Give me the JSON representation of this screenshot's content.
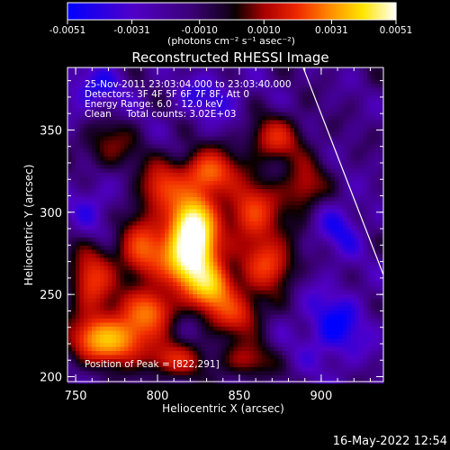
{
  "chart_data": {
    "type": "heatmap",
    "title": "Reconstructed RHESSI Image",
    "xlabel": "Heliocentric X (arcsec)",
    "ylabel": "Heliocentric Y (arcsec)",
    "xlim": [
      745,
      938
    ],
    "ylim": [
      197,
      388
    ],
    "x_ticks": [
      750,
      800,
      850,
      900
    ],
    "x_tick_labels": [
      "750",
      "800",
      "850",
      "900"
    ],
    "y_ticks": [
      200,
      250,
      300,
      350
    ],
    "y_tick_labels": [
      "200",
      "250",
      "300",
      "350"
    ],
    "colorbar": {
      "min": -0.0051,
      "max": 0.0051,
      "ticks": [
        -0.0051,
        -0.0031,
        -0.001,
        0.001,
        0.0031,
        0.0051
      ],
      "tick_labels": [
        "-0.0051",
        "-0.0031",
        "-0.0010",
        "0.0010",
        "0.0031",
        "0.0051"
      ],
      "units_label": "(photons cm⁻² s⁻¹ asec⁻²)",
      "colors": [
        "#0000ff",
        "#6a00d8",
        "#220022",
        "#000000",
        "#cc0000",
        "#ff6a00",
        "#ffd800",
        "#ffffff"
      ]
    },
    "annotations": [
      "25-Nov-2011 23:03:04.000 to 23:03:40.000",
      "Detectors: 3F 4F 5F 6F 7F 8F, Att 0",
      "Energy Range: 6.0 - 12.0 keV",
      "Clean     Total counts: 3.02E+03"
    ],
    "peak_label": "Position of Peak = [822,291]",
    "peak": [
      822,
      291
    ],
    "limb_line": [
      [
        889,
        388
      ],
      [
        938,
        262
      ]
    ],
    "sources": [
      {
        "x": 822,
        "y": 291,
        "amp": 0.0051,
        "sx": 10,
        "sy": 14
      },
      {
        "x": 818,
        "y": 270,
        "amp": 0.0035,
        "sx": 12,
        "sy": 12
      },
      {
        "x": 832,
        "y": 255,
        "amp": 0.0032,
        "sx": 10,
        "sy": 10
      },
      {
        "x": 770,
        "y": 222,
        "amp": 0.0037,
        "sx": 16,
        "sy": 10
      },
      {
        "x": 795,
        "y": 240,
        "amp": 0.0027,
        "sx": 12,
        "sy": 10
      },
      {
        "x": 760,
        "y": 258,
        "amp": 0.0024,
        "sx": 10,
        "sy": 16
      },
      {
        "x": 790,
        "y": 278,
        "amp": 0.0025,
        "sx": 10,
        "sy": 14
      },
      {
        "x": 802,
        "y": 315,
        "amp": 0.0022,
        "sx": 10,
        "sy": 12
      },
      {
        "x": 832,
        "y": 325,
        "amp": 0.0027,
        "sx": 12,
        "sy": 10
      },
      {
        "x": 858,
        "y": 300,
        "amp": 0.0025,
        "sx": 12,
        "sy": 14
      },
      {
        "x": 868,
        "y": 268,
        "amp": 0.0024,
        "sx": 12,
        "sy": 12
      },
      {
        "x": 848,
        "y": 238,
        "amp": 0.0022,
        "sx": 12,
        "sy": 10
      },
      {
        "x": 872,
        "y": 345,
        "amp": 0.0021,
        "sx": 12,
        "sy": 10
      },
      {
        "x": 890,
        "y": 315,
        "amp": 0.0018,
        "sx": 10,
        "sy": 12
      },
      {
        "x": 810,
        "y": 210,
        "amp": 0.002,
        "sx": 14,
        "sy": 8
      },
      {
        "x": 855,
        "y": 210,
        "amp": 0.0016,
        "sx": 12,
        "sy": 8
      },
      {
        "x": 770,
        "y": 340,
        "amp": 0.0014,
        "sx": 12,
        "sy": 12
      },
      {
        "x": 908,
        "y": 230,
        "amp": -0.0032,
        "sx": 14,
        "sy": 16
      },
      {
        "x": 912,
        "y": 290,
        "amp": -0.0024,
        "sx": 10,
        "sy": 12
      },
      {
        "x": 760,
        "y": 375,
        "amp": -0.0025,
        "sx": 14,
        "sy": 10
      },
      {
        "x": 832,
        "y": 370,
        "amp": -0.0022,
        "sx": 14,
        "sy": 10
      },
      {
        "x": 760,
        "y": 305,
        "amp": -0.0018,
        "sx": 10,
        "sy": 12
      }
    ]
  },
  "footer_timestamp": "16-May-2022 12:54"
}
